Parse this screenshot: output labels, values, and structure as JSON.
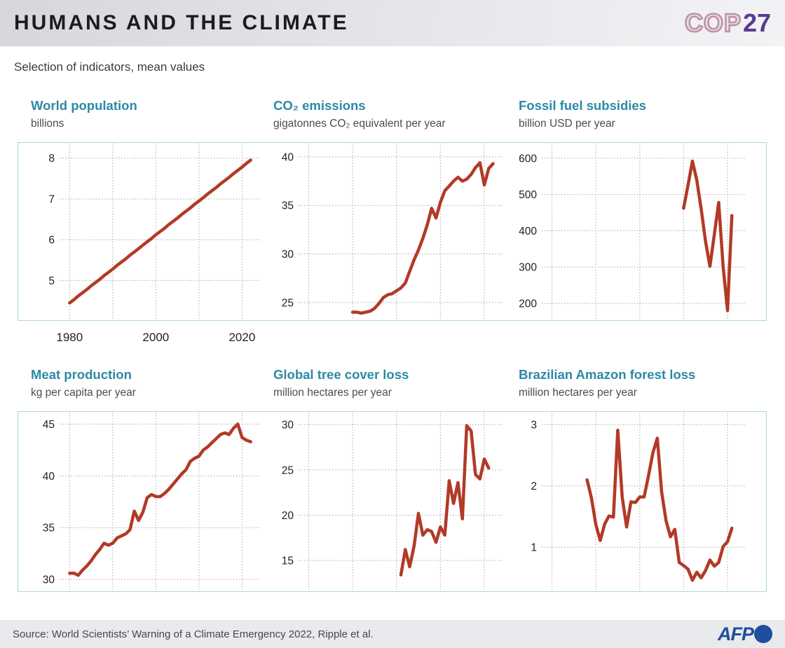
{
  "header": {
    "title": "HUMANS AND THE CLIMATE",
    "logo_cop": "COP",
    "logo_year": "27"
  },
  "subtitle": "Selection of indicators, mean values",
  "footer": {
    "source": "Source: World Scientists’ Warning of a Climate Emergency 2022, Ripple et al.",
    "agency": "AFP"
  },
  "colors": {
    "line": "#b23a26",
    "title_teal": "#2d89a5",
    "panel_border": "#aed8d7",
    "grid": "#9a9a9a",
    "cop_pink": "#c68fa6",
    "cop_purple": "#5b3a96",
    "afp_blue": "#1d4f9c"
  },
  "chart_data": [
    {
      "id": "world-population",
      "type": "line",
      "title": "World population",
      "unit": "billions",
      "x_start": 1980,
      "x_step": 1,
      "values": [
        4.45,
        4.53,
        4.62,
        4.7,
        4.78,
        4.87,
        4.95,
        5.03,
        5.12,
        5.2,
        5.28,
        5.37,
        5.45,
        5.53,
        5.62,
        5.7,
        5.78,
        5.87,
        5.95,
        6.03,
        6.12,
        6.2,
        6.28,
        6.37,
        6.45,
        6.53,
        6.62,
        6.7,
        6.78,
        6.87,
        6.95,
        7.03,
        7.12,
        7.2,
        7.28,
        7.37,
        7.45,
        7.53,
        7.62,
        7.7,
        7.78,
        7.87,
        7.95
      ],
      "yticks": [
        5,
        6,
        7,
        8
      ],
      "ydomain": [
        4.2,
        8.15
      ],
      "xgrid": [
        1980,
        1990,
        2000,
        2010,
        2020
      ],
      "xlabels": [
        1980,
        2000,
        2020
      ],
      "xdomain": [
        1978,
        2024
      ],
      "grid": "dotted"
    },
    {
      "id": "co2-emissions",
      "type": "line",
      "title": "CO₂ emissions",
      "unit": "gigatonnes CO₂ equivalent per year",
      "x_start": 1990,
      "x_step": 1,
      "values": [
        24.0,
        24.0,
        23.9,
        24.0,
        24.1,
        24.4,
        24.9,
        25.5,
        25.8,
        25.9,
        26.2,
        26.5,
        27.0,
        28.2,
        29.4,
        30.4,
        31.6,
        33.0,
        34.7,
        33.7,
        35.3,
        36.5,
        37.0,
        37.5,
        37.9,
        37.5,
        37.7,
        38.2,
        38.9,
        39.4,
        37.1,
        38.8,
        39.3
      ],
      "yticks": [
        25,
        30,
        35,
        40
      ],
      "ydomain": [
        23.9,
        40.5
      ],
      "xgrid": [
        1980,
        1990,
        2000,
        2010,
        2020
      ],
      "xlabels": [],
      "xdomain": [
        1978,
        2024
      ],
      "grid": "dotted"
    },
    {
      "id": "fossil-fuel-subsidies",
      "type": "line",
      "title": "Fossil fuel subsidies",
      "unit": "billion USD per year",
      "x_start": 2010,
      "x_step": 1,
      "values": [
        462,
        525,
        592,
        540,
        460,
        370,
        302,
        390,
        478,
        302,
        180,
        442
      ],
      "yticks": [
        200,
        300,
        400,
        500,
        600
      ],
      "ydomain": [
        173,
        617
      ],
      "xgrid": [
        1980,
        1990,
        2000,
        2010,
        2020
      ],
      "xlabels": [],
      "xdomain": [
        1978,
        2024
      ],
      "grid": "dotted"
    },
    {
      "id": "meat-production",
      "type": "line",
      "title": "Meat production",
      "unit": "kg per capita per year",
      "x_start": 1980,
      "x_step": 1,
      "values": [
        30.6,
        30.6,
        30.4,
        30.9,
        31.3,
        31.8,
        32.4,
        32.9,
        33.5,
        33.3,
        33.5,
        34.0,
        34.2,
        34.4,
        34.8,
        36.6,
        35.7,
        36.5,
        37.9,
        38.2,
        38.0,
        38.0,
        38.3,
        38.7,
        39.2,
        39.7,
        40.2,
        40.6,
        41.4,
        41.7,
        41.9,
        42.5,
        42.8,
        43.2,
        43.6,
        44.0,
        44.15,
        44.0,
        44.6,
        45.0,
        43.7,
        43.45,
        43.3
      ],
      "yticks": [
        30,
        35,
        40,
        45
      ],
      "ydomain": [
        29.6,
        45.3
      ],
      "xgrid": [
        1980,
        1990,
        2000,
        2010,
        2020
      ],
      "xlabels": [],
      "xdomain": [
        1978,
        2024
      ],
      "grid": "dotted"
    },
    {
      "id": "global-tree-cover-loss",
      "type": "line",
      "title": "Global tree cover loss",
      "unit": "million hectares per year",
      "x_start": 2001,
      "x_step": 1,
      "values": [
        13.4,
        16.2,
        14.3,
        16.6,
        20.2,
        17.8,
        18.4,
        18.2,
        17.0,
        18.7,
        17.8,
        23.8,
        21.3,
        23.6,
        19.6,
        29.9,
        29.3,
        24.5,
        24.0,
        26.2,
        25.2
      ],
      "yticks": [
        15,
        20,
        25,
        30
      ],
      "ydomain": [
        12.45,
        30.4
      ],
      "xgrid": [
        1980,
        1990,
        2000,
        2010,
        2020
      ],
      "xlabels": [],
      "xdomain": [
        1978,
        2024
      ],
      "grid": "dotted"
    },
    {
      "id": "brazilian-amazon-forest-loss",
      "type": "line",
      "title": "Brazilian Amazon forest loss",
      "unit": "million hectares per year",
      "x_start": 1988,
      "x_step": 1,
      "values": [
        2.1,
        1.8,
        1.37,
        1.11,
        1.38,
        1.51,
        1.49,
        2.91,
        1.82,
        1.33,
        1.74,
        1.73,
        1.82,
        1.82,
        2.17,
        2.54,
        2.78,
        1.9,
        1.43,
        1.17,
        1.29,
        0.75,
        0.7,
        0.64,
        0.46,
        0.59,
        0.5,
        0.62,
        0.79,
        0.69,
        0.75,
        1.01,
        1.09,
        1.31
      ],
      "yticks": [
        1,
        2,
        3
      ],
      "ydomain": [
        0.406,
        3.06
      ],
      "xgrid": [
        1980,
        1990,
        2000,
        2010,
        2020
      ],
      "xlabels": [],
      "xdomain": [
        1978,
        2024
      ],
      "grid": "dotted"
    }
  ]
}
